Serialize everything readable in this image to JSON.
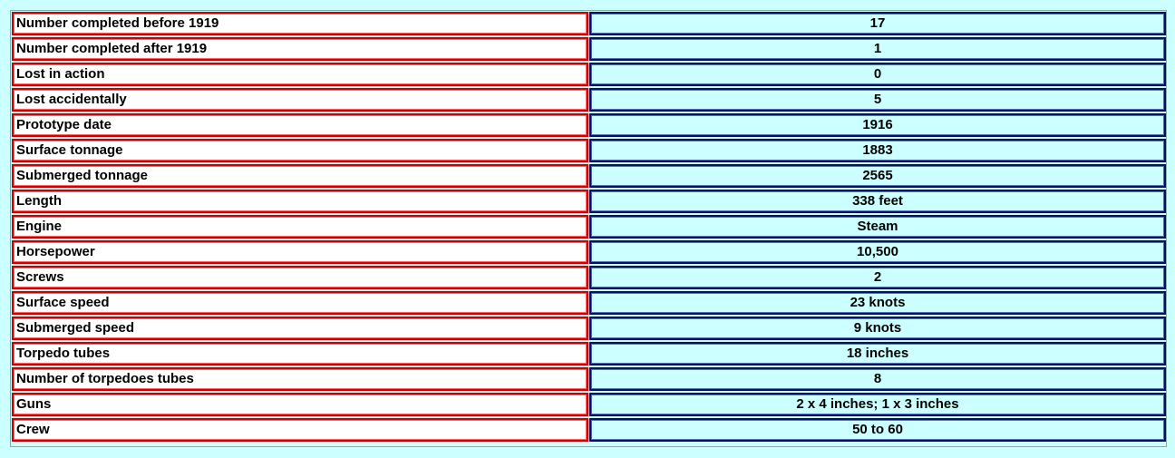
{
  "table": {
    "rows": [
      [
        "Number completed before 1919",
        "17"
      ],
      [
        "Number completed after 1919",
        "1"
      ],
      [
        "Lost in action",
        "0"
      ],
      [
        "Lost accidentally",
        "5"
      ],
      [
        "Prototype date",
        "1916"
      ],
      [
        "Surface tonnage",
        "1883"
      ],
      [
        "Submerged tonnage",
        "2565"
      ],
      [
        "Length",
        "338 feet"
      ],
      [
        "Engine",
        "Steam"
      ],
      [
        "Horsepower",
        "10,500"
      ],
      [
        "Screws",
        "2"
      ],
      [
        "Surface speed",
        "23 knots"
      ],
      [
        "Submerged speed",
        "9 knots"
      ],
      [
        "Torpedo tubes",
        "18 inches"
      ],
      [
        "Number of torpedoes tubes",
        "8"
      ],
      [
        "Guns",
        "2 x 4 inches; 1 x 3 inches"
      ],
      [
        "Crew",
        "50 to 60"
      ]
    ]
  }
}
